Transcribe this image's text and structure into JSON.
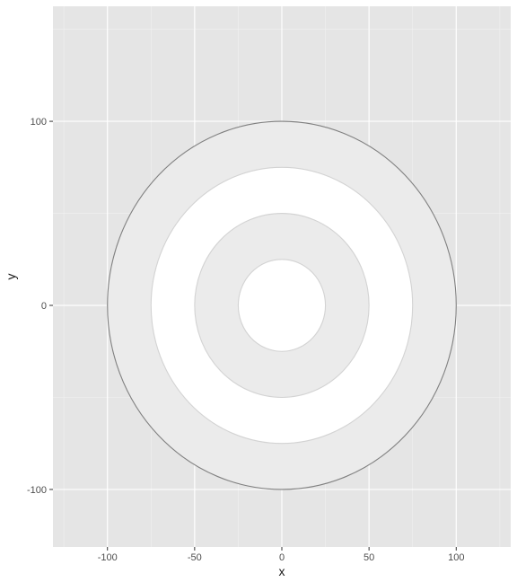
{
  "chart_data": {
    "type": "scatter",
    "title": "",
    "xlabel": "x",
    "ylabel": "y",
    "xlim": [
      -131.25,
      131.25
    ],
    "ylim": [
      -131.25,
      162.5
    ],
    "x_ticks": [
      -100,
      -50,
      0,
      50,
      100
    ],
    "x_tick_labels": [
      "-100",
      "-50",
      "0",
      "50",
      "100"
    ],
    "y_ticks": [
      -100,
      0,
      100
    ],
    "y_tick_labels": [
      "-100",
      "0",
      "100"
    ],
    "x_minor_ticks": [
      -125,
      -75,
      -25,
      25,
      75,
      125
    ],
    "y_minor_ticks": [
      -50,
      50,
      150
    ],
    "grid": true,
    "legend": "none",
    "rings": [
      {
        "radius": 100,
        "fill": "#ebebeb",
        "stroke": "#808080"
      },
      {
        "radius": 75,
        "fill": "#ffffff",
        "stroke": "#d3d3d3"
      },
      {
        "radius": 50,
        "fill": "#ebebeb",
        "stroke": "#d3d3d3"
      },
      {
        "radius": 25,
        "fill": "#ffffff",
        "stroke": "#d3d3d3"
      }
    ],
    "colors": {
      "panel_background": "#e5e5e5",
      "grid_major": "#ffffff",
      "grid_minor": "#f2f2f2",
      "tick": "#333333"
    }
  }
}
